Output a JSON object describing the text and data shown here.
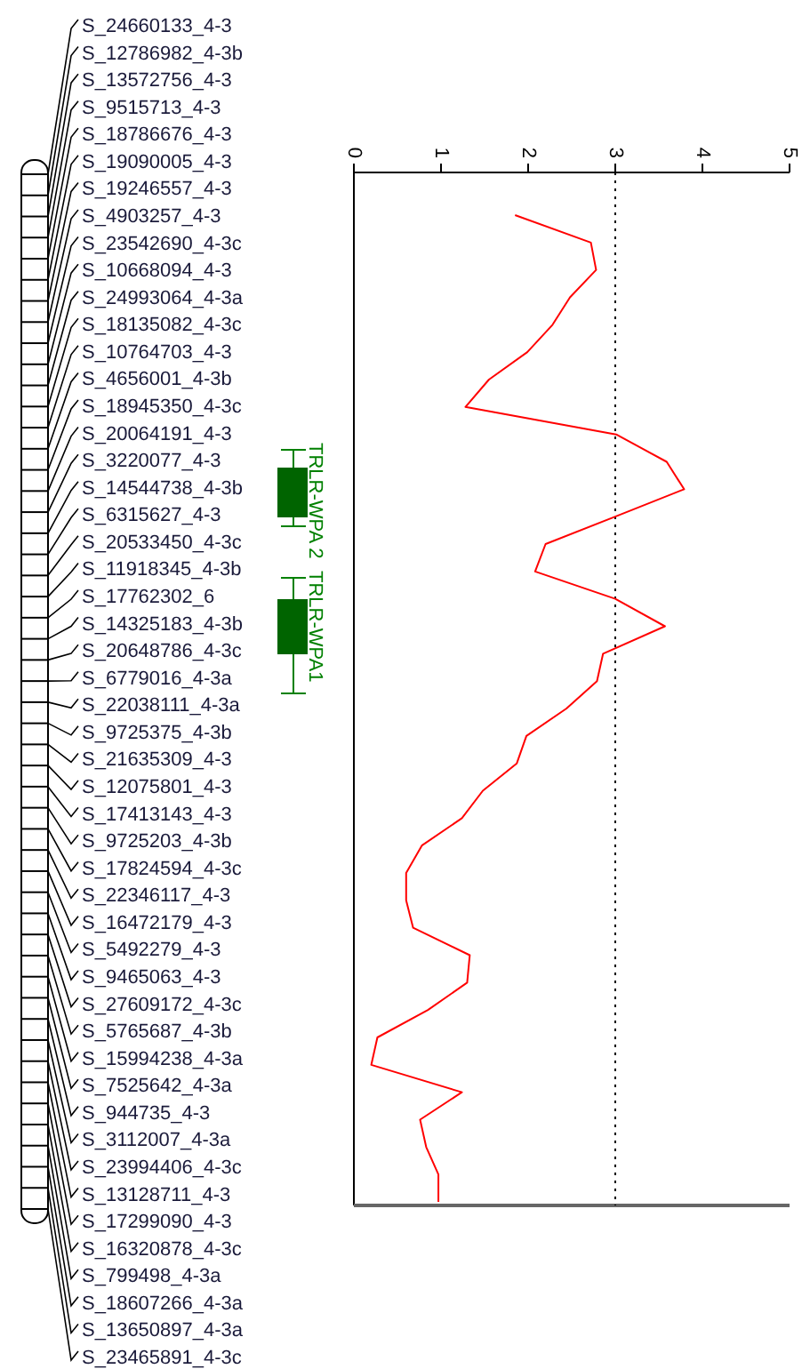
{
  "chart_data": {
    "type": "line",
    "orientation": "horizontal",
    "categories": [
      null,
      null,
      null,
      null,
      null,
      null,
      null,
      null,
      null,
      null,
      null,
      null,
      null,
      null,
      null,
      null,
      null,
      null,
      null,
      null,
      null,
      null,
      null,
      null,
      null,
      null,
      null,
      null,
      null,
      null,
      null,
      null,
      null,
      null,
      null,
      null,
      null
    ],
    "series": [
      {
        "color": "#ff0000",
        "values": [
          1.85,
          2.72,
          2.78,
          2.48,
          2.28,
          1.99,
          1.55,
          1.28,
          3.01,
          3.59,
          3.79,
          3.0,
          2.2,
          2.08,
          3.0,
          3.57,
          2.86,
          2.79,
          2.44,
          1.98,
          1.87,
          1.48,
          1.24,
          0.78,
          0.6,
          0.6,
          0.68,
          1.33,
          1.3,
          0.85,
          0.27,
          0.2,
          1.24,
          0.76,
          0.83,
          0.97,
          0.97
        ]
      }
    ],
    "xlim": [
      0,
      5
    ],
    "xticks": [
      0,
      1,
      2,
      3,
      4,
      5
    ],
    "ref_lines": [
      {
        "axis": "x",
        "value": 3,
        "color": "#000000",
        "line_style": "dotted"
      }
    ],
    "annotations": [
      "S_24660133_4-3",
      "S_12786982_4-3b",
      "S_13572756_4-3",
      "S_9515713_4-3",
      "S_18786676_4-3",
      "S_19090005_4-3",
      "S_19246557_4-3",
      "S_4903257_4-3",
      "S_23542690_4-3c",
      "S_10668094_4-3",
      "S_24993064_4-3a",
      "S_18135082_4-3c",
      "S_10764703_4-3",
      "S_4656001_4-3b",
      "S_18945350_4-3c",
      "S_20064191_4-3",
      "S_3220077_4-3",
      "S_14544738_4-3b",
      "S_6315627_4-3",
      "S_20533450_4-3c",
      "S_11918345_4-3b",
      "S_17762302_6",
      "S_14325183_4-3b",
      "S_20648786_4-3c",
      "S_6779016_4-3a",
      "S_22038111_4-3a",
      "S_9725375_4-3b",
      "S_21635309_4-3",
      "S_12075801_4-3",
      "S_17413143_4-3",
      "S_9725203_4-3b",
      "S_17824594_4-3c",
      "S_22346117_4-3",
      "S_16472179_4-3",
      "S_5492279_4-3",
      "S_9465063_4-3",
      "S_27609172_4-3c",
      "S_5765687_4-3b",
      "S_15994238_4-3a",
      "S_7525642_4-3a",
      "S_944735_4-3",
      "S_3112007_4-3a",
      "S_23994406_4-3c",
      "S_13128711_4-3",
      "S_17299090_4-3",
      "S_16320878_4-3c",
      "S_799498_4-3a",
      "S_18607266_4-3a",
      "S_13650897_4-3a",
      "S_23465891_4-3c",
      "TRLR-WPA 2",
      "TRLR-WPA1"
    ]
  }
}
